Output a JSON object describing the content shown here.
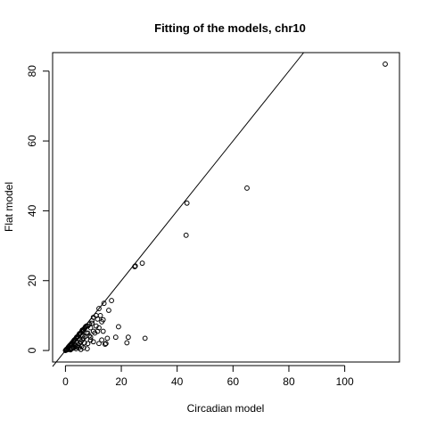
{
  "chart_data": {
    "type": "scatter",
    "title": "Fitting of the models, chr10",
    "xlabel": "Circadian model",
    "ylabel": "Flat model",
    "xlim": [
      -4.6,
      119.6
    ],
    "ylim": [
      -3.3,
      85.3
    ],
    "xticks": [
      0,
      20,
      40,
      60,
      80,
      100
    ],
    "yticks": [
      0,
      20,
      40,
      60,
      80
    ],
    "grid": false,
    "reference_line": {
      "intercept": 0,
      "slope": 1
    },
    "point_color": "#000000",
    "series": [
      {
        "values": [
          [
            114.5,
            82.0
          ],
          [
            65.0,
            46.5
          ],
          [
            43.5,
            42.2
          ],
          [
            43.2,
            33.0
          ],
          [
            27.5,
            25.0
          ],
          [
            25.0,
            24.2
          ],
          [
            24.8,
            24.0
          ],
          [
            28.5,
            3.5
          ],
          [
            22.5,
            3.8
          ],
          [
            22.0,
            2.2
          ],
          [
            19.0,
            6.8
          ],
          [
            18.0,
            3.8
          ],
          [
            16.5,
            14.3
          ],
          [
            15.5,
            11.5
          ],
          [
            15.0,
            3.5
          ],
          [
            14.5,
            2.0
          ],
          [
            14.2,
            1.8
          ],
          [
            13.8,
            13.5
          ],
          [
            13.5,
            5.5
          ],
          [
            13.5,
            8.8
          ],
          [
            13.0,
            8.2
          ],
          [
            13.0,
            3.0
          ],
          [
            12.5,
            10.0
          ],
          [
            12.0,
            12.0
          ],
          [
            12.0,
            6.5
          ],
          [
            12.0,
            2.0
          ],
          [
            11.5,
            9.0
          ],
          [
            11.0,
            10.0
          ],
          [
            11.0,
            7.0
          ],
          [
            10.5,
            5.0
          ],
          [
            10.0,
            9.5
          ],
          [
            10.0,
            5.5
          ],
          [
            10.0,
            2.5
          ],
          [
            9.5,
            8.5
          ],
          [
            9.0,
            6.5
          ],
          [
            9.0,
            3.0
          ],
          [
            8.5,
            7.5
          ],
          [
            8.0,
            7.0
          ],
          [
            8.0,
            5.0
          ],
          [
            8.0,
            2.0
          ],
          [
            7.5,
            7.0
          ],
          [
            7.5,
            5.0
          ],
          [
            7.0,
            6.5
          ],
          [
            7.0,
            4.0
          ],
          [
            6.5,
            6.0
          ],
          [
            6.5,
            3.5
          ],
          [
            6.0,
            5.8
          ],
          [
            6.0,
            3.0
          ],
          [
            5.5,
            5.0
          ],
          [
            5.5,
            2.5
          ],
          [
            5.0,
            4.8
          ],
          [
            5.0,
            2.0
          ],
          [
            4.5,
            4.0
          ],
          [
            4.5,
            1.5
          ],
          [
            4.0,
            3.8
          ],
          [
            4.0,
            1.0
          ],
          [
            3.5,
            3.2
          ],
          [
            3.5,
            1.2
          ],
          [
            3.0,
            2.8
          ],
          [
            3.0,
            0.8
          ],
          [
            2.5,
            2.3
          ],
          [
            2.5,
            0.6
          ],
          [
            2.0,
            1.8
          ],
          [
            2.0,
            0.5
          ],
          [
            1.5,
            1.4
          ],
          [
            1.5,
            0.4
          ],
          [
            1.0,
            0.9
          ],
          [
            1.0,
            0.3
          ],
          [
            0.5,
            0.4
          ],
          [
            0.5,
            0.2
          ],
          [
            0.2,
            0.1
          ],
          [
            0.0,
            0.0
          ],
          [
            0.3,
            0.3
          ],
          [
            0.8,
            0.6
          ],
          [
            1.2,
            1.1
          ],
          [
            1.8,
            1.6
          ],
          [
            2.2,
            2.0
          ],
          [
            2.8,
            2.5
          ],
          [
            3.2,
            3.0
          ],
          [
            3.8,
            3.5
          ],
          [
            4.2,
            3.9
          ],
          [
            4.8,
            4.5
          ],
          [
            5.2,
            4.9
          ],
          [
            5.8,
            5.4
          ],
          [
            6.2,
            5.9
          ],
          [
            6.8,
            6.3
          ],
          [
            7.2,
            6.8
          ],
          [
            4.2,
            2.2
          ],
          [
            5.2,
            3.2
          ],
          [
            6.2,
            4.2
          ],
          [
            3.2,
            1.8
          ],
          [
            2.8,
            1.0
          ],
          [
            4.8,
            0.8
          ],
          [
            3.8,
            0.5
          ],
          [
            1.8,
            0.2
          ],
          [
            5.8,
            1.2
          ],
          [
            6.8,
            2.2
          ],
          [
            8.5,
            4.2
          ],
          [
            9.5,
            7.8
          ],
          [
            11.5,
            5.5
          ],
          [
            7.8,
            0.5
          ],
          [
            6.5,
            0.8
          ],
          [
            5.5,
            0.3
          ],
          [
            9.0,
            3.8
          ]
        ]
      }
    ]
  }
}
